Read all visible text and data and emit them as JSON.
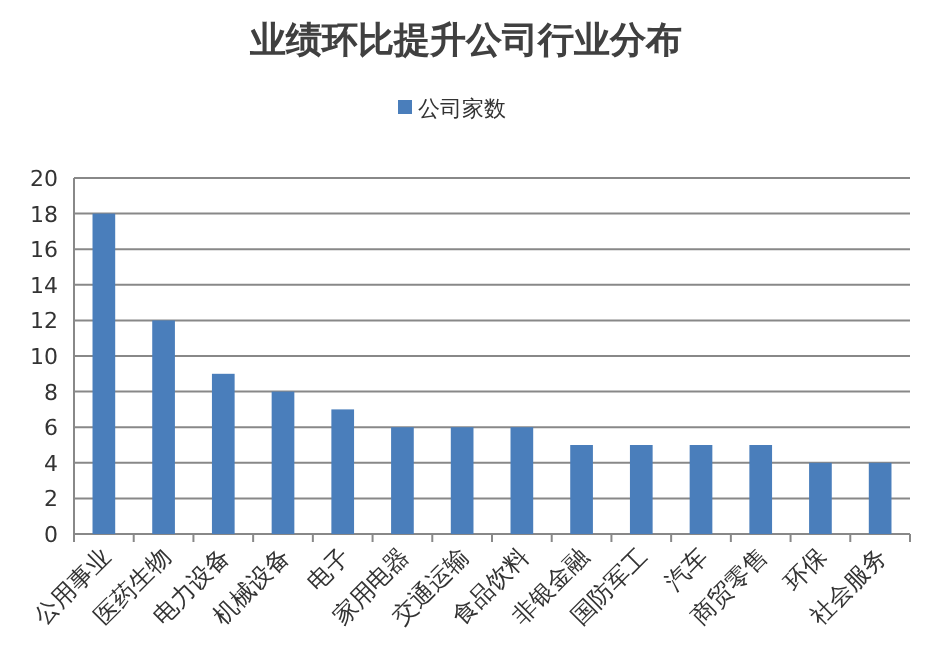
{
  "chart_data": {
    "type": "bar",
    "title": "业绩环比提升公司行业分布",
    "categories": [
      "公用事业",
      "医药生物",
      "电力设备",
      "机械设备",
      "电子",
      "家用电器",
      "交通运输",
      "食品饮料",
      "非银金融",
      "国防军工",
      "汽车",
      "商贸零售",
      "环保",
      "社会服务"
    ],
    "series": [
      {
        "name": "公司家数",
        "color": "#4a7ebb",
        "values": [
          18,
          12,
          9,
          8,
          7,
          6,
          6,
          6,
          5,
          5,
          5,
          5,
          4,
          4
        ]
      }
    ],
    "ylim": [
      0,
      20
    ],
    "yticks": [
      0,
      2,
      4,
      6,
      8,
      10,
      12,
      14,
      16,
      18,
      20
    ],
    "grid": "y",
    "legend": "top"
  }
}
